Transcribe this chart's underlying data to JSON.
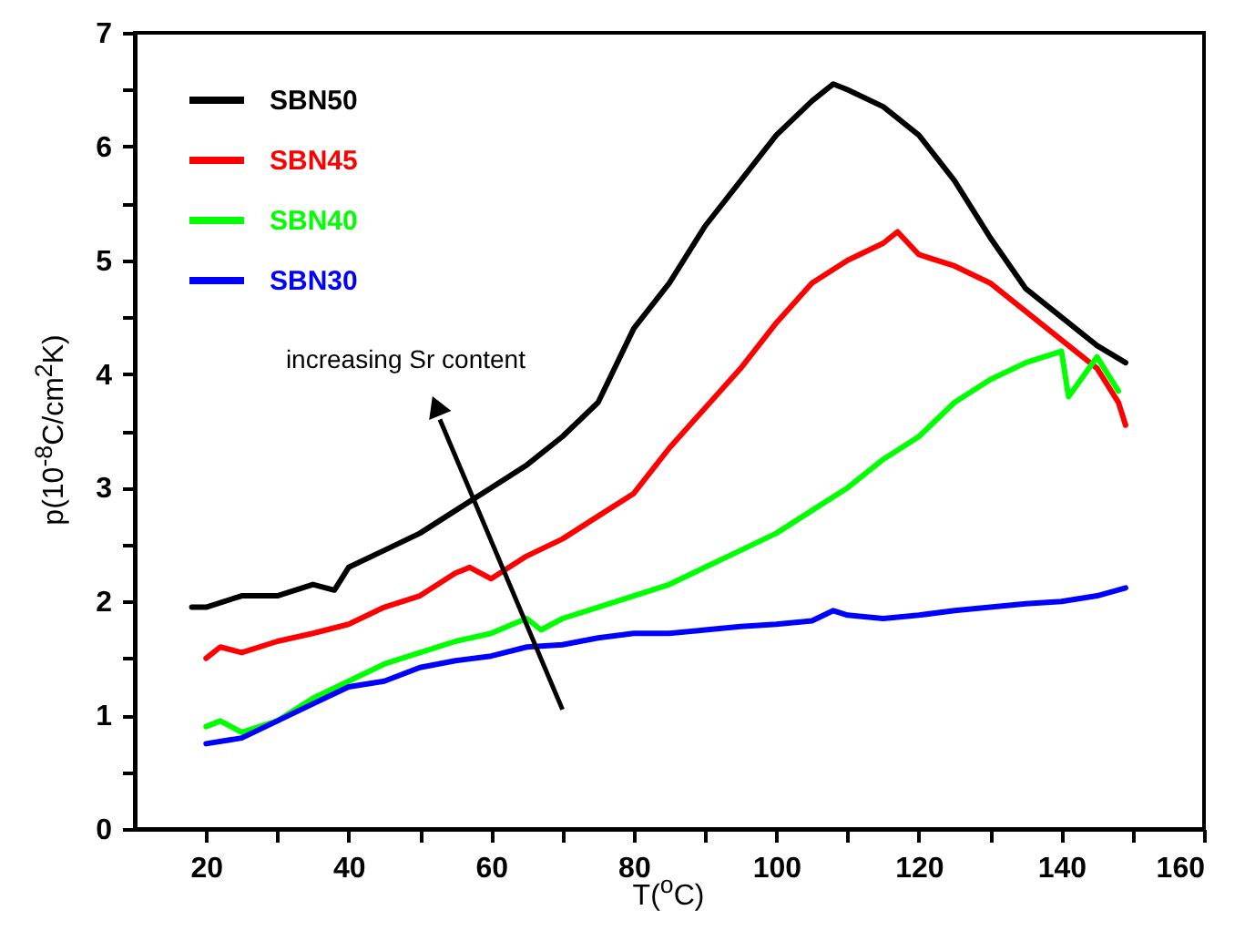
{
  "chart_data": {
    "type": "line",
    "xlabel": "T($^{o}$C)",
    "ylabel": "p(10$^{-8}$C/cm$^{2}$K)",
    "annotations": [
      "increasing Sr content"
    ],
    "xlim": [
      10,
      160
    ],
    "xticks": [
      20,
      {
        "value": 30,
        "label": null
      },
      40,
      {
        "value": 50,
        "label": null
      },
      60,
      {
        "value": 70,
        "label": null
      },
      80,
      {
        "value": 90,
        "label": null
      },
      100,
      {
        "value": 110,
        "label": null
      },
      120,
      {
        "value": 130,
        "label": null
      },
      140,
      {
        "value": 150,
        "label": null
      },
      160
    ],
    "ylim": [
      0,
      7
    ],
    "yticks": [
      0,
      {
        "value": 0.5,
        "label": null
      },
      1,
      {
        "value": 1.5,
        "label": null
      },
      2,
      {
        "value": 2.5,
        "label": null
      },
      3,
      {
        "value": 3.5,
        "label": null
      },
      4,
      {
        "value": 4.5,
        "label": null
      },
      5,
      {
        "value": 5.5,
        "label": null
      },
      6,
      {
        "value": 6.5,
        "label": null
      },
      7
    ],
    "legend": "top left",
    "grid": false,
    "line_style": "solid",
    "marker": "none",
    "series": [
      {
        "name": "SBN50",
        "color": "#000000",
        "x": [
          18,
          20,
          25,
          30,
          35,
          38,
          40,
          45,
          50,
          55,
          60,
          65,
          70,
          75,
          80,
          85,
          90,
          95,
          100,
          105,
          108,
          110,
          115,
          120,
          125,
          130,
          135,
          140,
          145,
          149
        ],
        "values": [
          1.95,
          1.95,
          2.05,
          2.05,
          2.15,
          2.1,
          2.3,
          2.45,
          2.6,
          2.8,
          3.0,
          3.2,
          3.45,
          3.75,
          4.4,
          4.8,
          5.3,
          5.7,
          6.1,
          6.4,
          6.55,
          6.5,
          6.35,
          6.1,
          5.7,
          5.2,
          4.75,
          4.5,
          4.25,
          4.1
        ]
      },
      {
        "name": "SBN45",
        "color": "#ff0000",
        "x": [
          20,
          22,
          25,
          30,
          35,
          40,
          45,
          50,
          55,
          57,
          60,
          65,
          70,
          75,
          80,
          85,
          90,
          95,
          100,
          105,
          110,
          115,
          117,
          120,
          125,
          130,
          135,
          140,
          145,
          148,
          149
        ],
        "values": [
          1.5,
          1.6,
          1.55,
          1.65,
          1.72,
          1.8,
          1.95,
          2.05,
          2.25,
          2.3,
          2.2,
          2.4,
          2.55,
          2.75,
          2.95,
          3.35,
          3.7,
          4.05,
          4.45,
          4.8,
          5.0,
          5.15,
          5.25,
          5.05,
          4.95,
          4.8,
          4.55,
          4.3,
          4.05,
          3.75,
          3.55
        ]
      },
      {
        "name": "SBN40",
        "color": "#00ff00",
        "x": [
          20,
          22,
          25,
          30,
          35,
          40,
          45,
          50,
          55,
          60,
          63,
          65,
          67,
          70,
          75,
          80,
          85,
          90,
          95,
          100,
          105,
          110,
          115,
          120,
          125,
          130,
          135,
          140,
          141,
          145,
          148
        ],
        "values": [
          0.9,
          0.95,
          0.85,
          0.95,
          1.15,
          1.3,
          1.45,
          1.55,
          1.65,
          1.72,
          1.8,
          1.85,
          1.75,
          1.85,
          1.95,
          2.05,
          2.15,
          2.3,
          2.45,
          2.6,
          2.8,
          3.0,
          3.25,
          3.45,
          3.75,
          3.95,
          4.1,
          4.2,
          3.8,
          4.15,
          3.85
        ]
      },
      {
        "name": "SBN30",
        "color": "#0000ff",
        "x": [
          20,
          25,
          30,
          35,
          40,
          45,
          50,
          55,
          60,
          65,
          70,
          75,
          80,
          85,
          90,
          95,
          100,
          105,
          108,
          110,
          115,
          120,
          125,
          130,
          135,
          140,
          145,
          149
        ],
        "values": [
          0.75,
          0.8,
          0.95,
          1.1,
          1.25,
          1.3,
          1.42,
          1.48,
          1.52,
          1.6,
          1.62,
          1.68,
          1.72,
          1.72,
          1.75,
          1.78,
          1.8,
          1.83,
          1.92,
          1.88,
          1.85,
          1.88,
          1.92,
          1.95,
          1.98,
          2.0,
          2.05,
          2.12
        ]
      }
    ]
  }
}
